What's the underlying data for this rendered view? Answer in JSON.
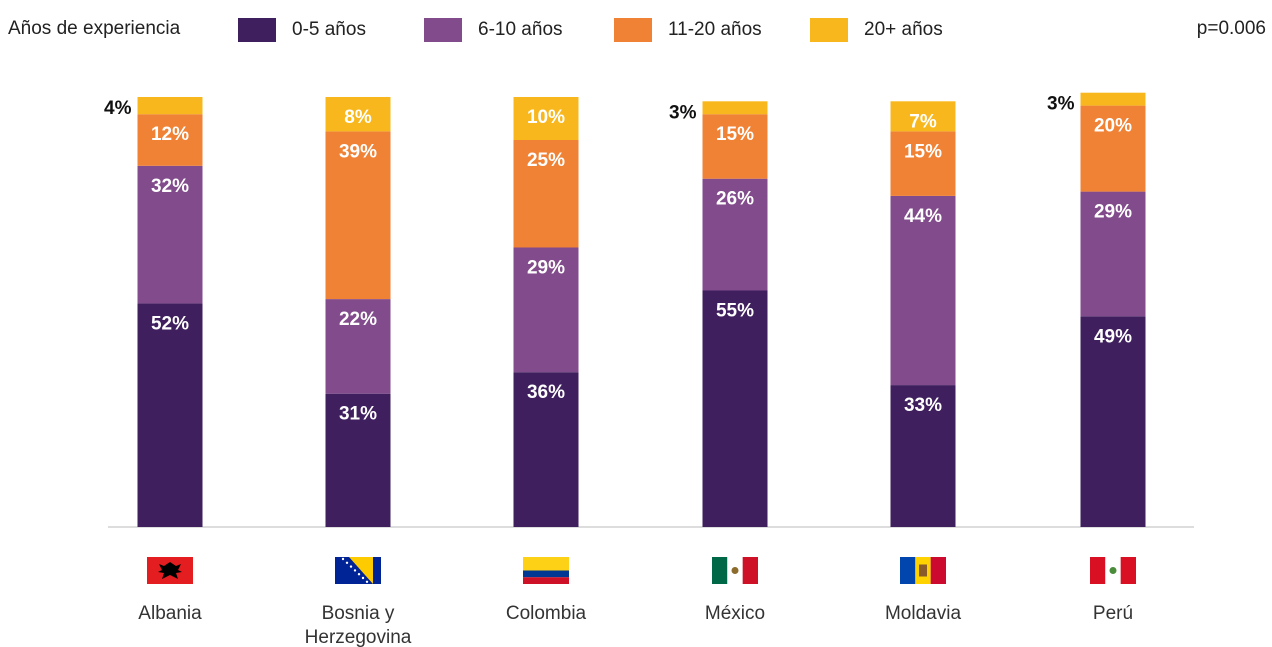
{
  "legend": {
    "title": "Años de experiencia",
    "p_value": "p=0.006"
  },
  "chart_data": {
    "type": "bar",
    "stacked": true,
    "title": "",
    "xlabel": "",
    "ylabel": "",
    "ylim": [
      0,
      100
    ],
    "grid": false,
    "legend_position": "top",
    "categories": [
      "Albania",
      "Bosnia y Herzegovina",
      "Colombia",
      "México",
      "Moldavia",
      "Perú"
    ],
    "series": [
      {
        "name": "0-5 años",
        "color": "#3f1f5e",
        "values": [
          52,
          31,
          36,
          55,
          33,
          49
        ]
      },
      {
        "name": "6-10 años",
        "color": "#824b8c",
        "values": [
          32,
          22,
          29,
          26,
          44,
          29
        ]
      },
      {
        "name": "11-20 años",
        "color": "#f08235",
        "values": [
          12,
          39,
          25,
          15,
          15,
          20
        ]
      },
      {
        "name": "20+ años",
        "color": "#f8b81d",
        "values": [
          4,
          8,
          10,
          3,
          7,
          3
        ]
      }
    ],
    "flags": [
      "albania-flag-icon",
      "bosnia-flag-icon",
      "colombia-flag-icon",
      "mexico-flag-icon",
      "moldova-flag-icon",
      "peru-flag-icon"
    ]
  }
}
